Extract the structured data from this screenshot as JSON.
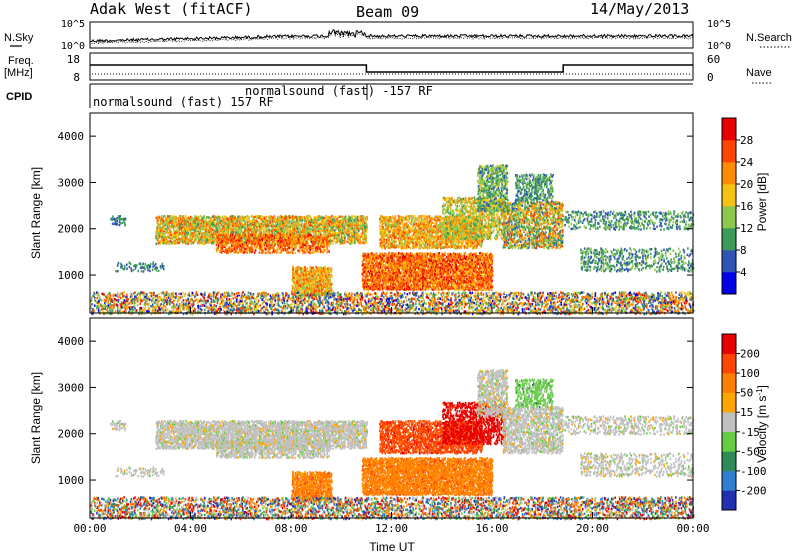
{
  "header": {
    "site": "Adak West (fitACF)",
    "beam": "Beam 09",
    "date": "14/May/2013"
  },
  "strip_labels": {
    "nsky": "N.Sky",
    "nsearch": "N.Search",
    "freq_line1": "Freq.",
    "freq_line2": "[MHz]",
    "nave": "Nave",
    "cpid": "CPID",
    "cpid_1": "normalsound (fast) 157 RF",
    "cpid_2": "normalsound (fast) -157 RF"
  },
  "chart_data": [
    {
      "type": "line",
      "name": "noise-strip",
      "left_ticks": [
        "10^5",
        "10^0"
      ],
      "right_ticks": [
        "10^5",
        "10^0"
      ],
      "x_range_hours": [
        0,
        24
      ]
    },
    {
      "type": "line",
      "name": "frequency-nave-strip",
      "left_ticks": [
        "18",
        "8"
      ],
      "right_ticks": [
        "60",
        "0"
      ],
      "frequency_segments": [
        {
          "start": "00:00",
          "end": "11:00",
          "level": "high"
        },
        {
          "start": "11:00",
          "end": "18:50",
          "level": "low"
        },
        {
          "start": "18:50",
          "end": "24:00",
          "level": "high"
        }
      ]
    },
    {
      "type": "heatmap",
      "name": "power",
      "ylabel": "Slant Range [km]",
      "ylim": [
        180,
        4500
      ],
      "yticks": [
        1000,
        2000,
        3000,
        4000
      ],
      "colorbar_label": "Power [dB]",
      "colorbar_ticks": [
        "28",
        "24",
        "20",
        "16",
        "12",
        "8",
        "4"
      ],
      "colorbar_colors": [
        "#0000e6",
        "#2f54b4",
        "#3c9a5a",
        "#8cc84b",
        "#f5c314",
        "#ff8c00",
        "#ff4500",
        "#e60000"
      ]
    },
    {
      "type": "heatmap",
      "name": "velocity",
      "ylabel": "Slant Range [km]",
      "ylim": [
        180,
        4500
      ],
      "yticks": [
        1000,
        2000,
        3000,
        4000
      ],
      "colorbar_label": "Velocity [m s^-1]",
      "colorbar_ticks": [
        "200",
        "100",
        "50",
        "15",
        "-15",
        "-50",
        "-100",
        "-200"
      ],
      "colorbar_colors": [
        "#2030b0",
        "#2f7fd0",
        "#2e8b57",
        "#66cc44",
        "#c0c0c0",
        "#ffa500",
        "#ff7f00",
        "#ff4500",
        "#e60000"
      ],
      "xlabel": "Time UT",
      "xticks": [
        "00:00",
        "04:00",
        "08:00",
        "12:00",
        "16:00",
        "20:00",
        "00:00"
      ]
    }
  ]
}
